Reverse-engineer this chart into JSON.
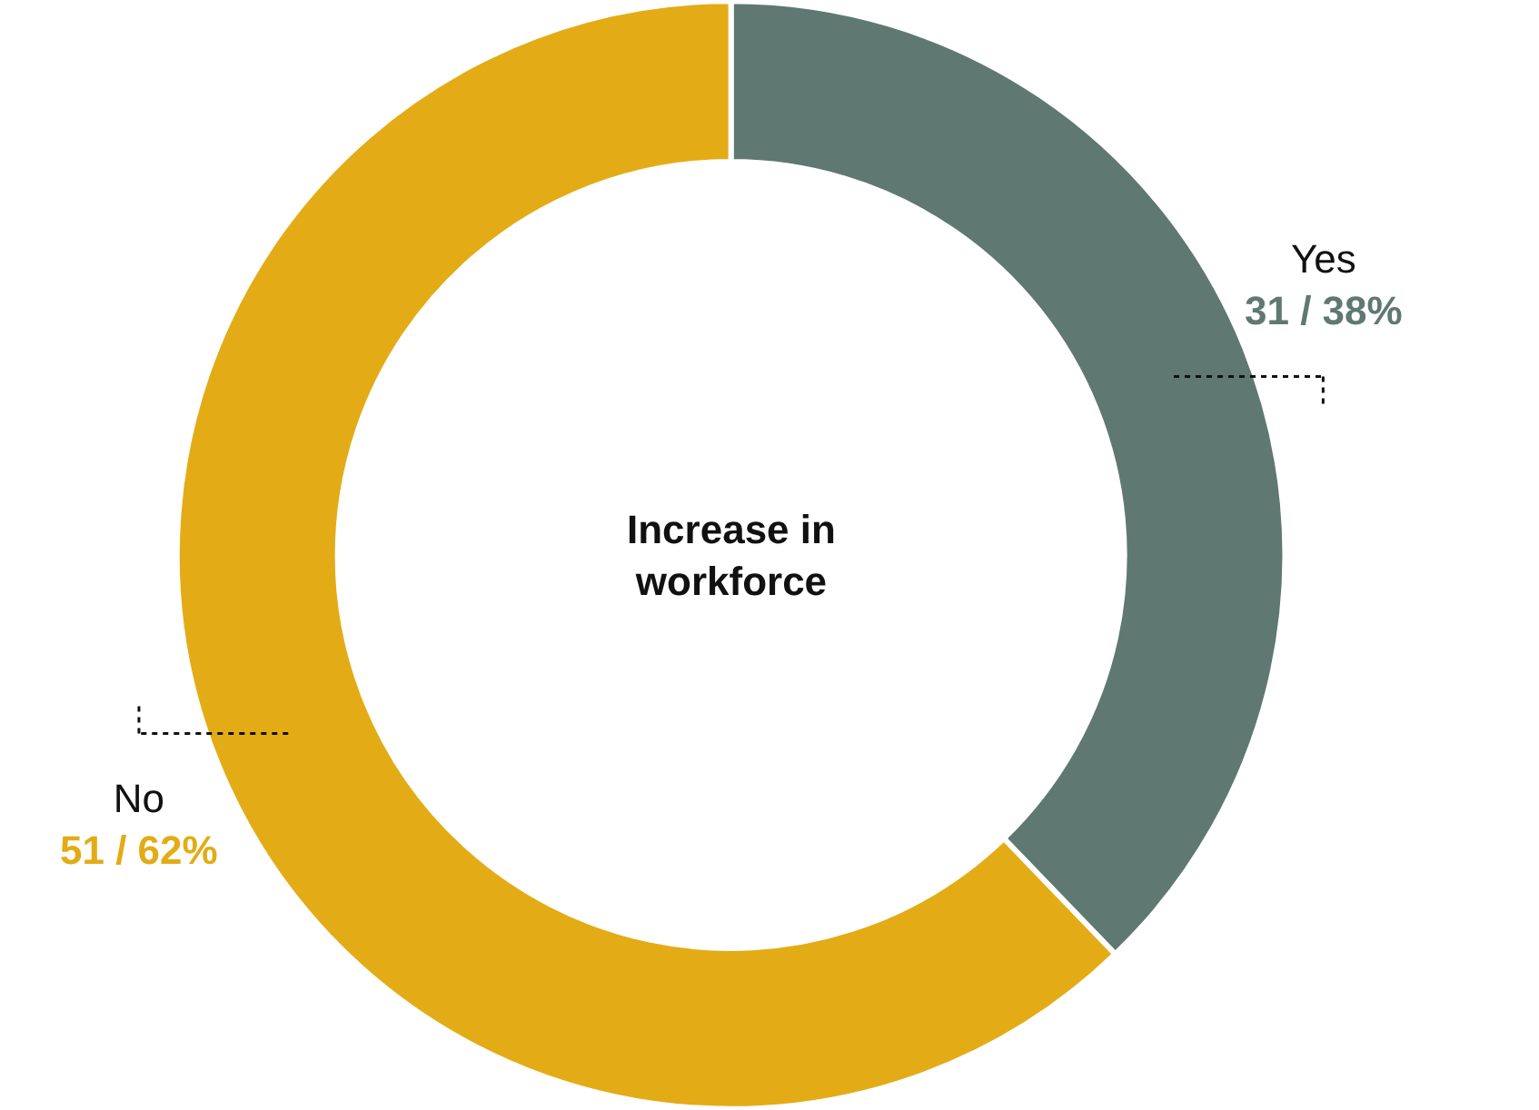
{
  "chart_data": {
    "type": "donut",
    "title": "Increase in workforce",
    "categories": [
      "Yes",
      "No"
    ],
    "values": [
      31,
      51
    ],
    "colors": [
      "#5f7872",
      "#e3ac16"
    ],
    "value_labels": [
      "31 / 38%",
      "51 / 62%"
    ],
    "legend": false
  }
}
